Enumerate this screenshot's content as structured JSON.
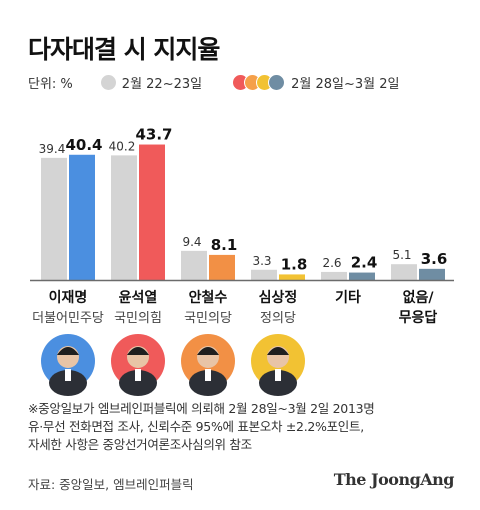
{
  "title": "다자대결 시 지지율",
  "legend": {
    "unit": "단위: %",
    "series1_label": "2월 22~23일",
    "series2_label": "2월 28일~3월 2일"
  },
  "colors": {
    "prev": "#d4d4d4",
    "baseline": "#6b6b6b",
    "dot_cycle": [
      "#f05a5a",
      "#f5a04a",
      "#f2c233",
      "#6f8da3"
    ]
  },
  "chart_data": {
    "type": "bar",
    "categories": [
      "이재명",
      "윤석열",
      "안철수",
      "심상정",
      "기타",
      "없음/무응답"
    ],
    "party": [
      "더불어민주당",
      "국민의힘",
      "국민의당",
      "정의당",
      "",
      ""
    ],
    "series": [
      {
        "name": "2월 22~23일",
        "values": [
          39.4,
          40.2,
          9.4,
          3.3,
          2.6,
          5.1
        ],
        "colors": [
          "#d4d4d4",
          "#d4d4d4",
          "#d4d4d4",
          "#d4d4d4",
          "#d4d4d4",
          "#d4d4d4"
        ]
      },
      {
        "name": "2월 28일~3월 2일",
        "values": [
          40.4,
          43.7,
          8.1,
          1.8,
          2.4,
          3.6
        ],
        "colors": [
          "#4b8fe0",
          "#f05a5a",
          "#f29045",
          "#f2c233",
          "#6f8da3",
          "#6f8da3"
        ]
      }
    ],
    "ylim": [
      0,
      45
    ],
    "grid": false
  },
  "candidates": [
    {
      "name": "이재명",
      "bg": "#4b8fe0"
    },
    {
      "name": "윤석열",
      "bg": "#f05a5a"
    },
    {
      "name": "안철수",
      "bg": "#f29045"
    },
    {
      "name": "심상정",
      "bg": "#f2c233"
    }
  ],
  "notes": [
    "※중앙일보가 엠브레인퍼블릭에 의뢰해 2월 28일~3월 2일 2013명",
    "유·무선 전화면접 조사, 신뢰수준 95%에 표본오차 ±2.2%포인트,",
    "자세한 사항은 중앙선거여론조사심의위 참조"
  ],
  "source": "자료: 중앙일보, 엠브레인퍼블릭",
  "brand": "The JoongAng"
}
